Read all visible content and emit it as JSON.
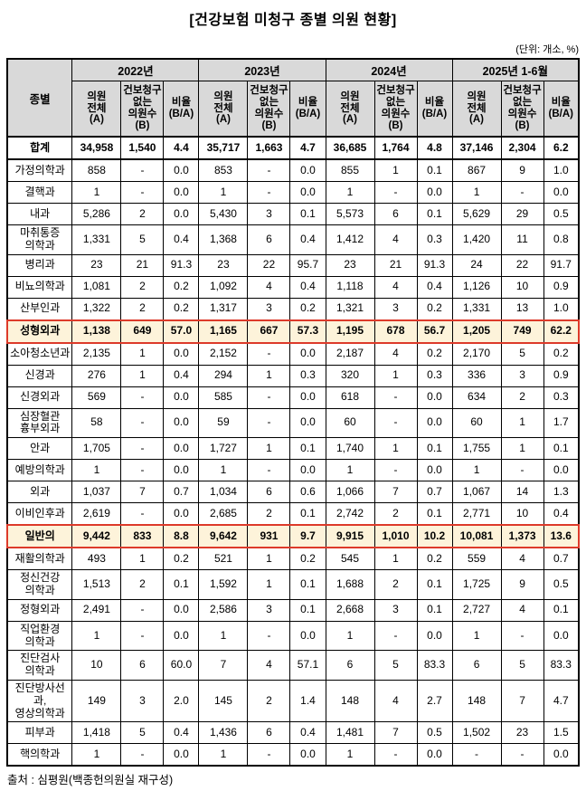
{
  "title": "[건강보험 미청구 종별 의원 현황]",
  "unit_note": "(단위: 개소, %)",
  "source_note": "출처 : 심평원(백종헌의원실 재구성)",
  "colors": {
    "header_bg": "#d9d9d9",
    "highlight_bg": "#fdf3da",
    "highlight_border": "#dd3a2a",
    "border": "#000000"
  },
  "table": {
    "corner_header": "종별",
    "year_groups": [
      "2022년",
      "2023년",
      "2024년",
      "2025년 1-6월"
    ],
    "sub_headers": [
      "의원\n전체\n(A)",
      "건보청구\n없는\n의원수\n(B)",
      "비율\n(B/A)"
    ],
    "rows": [
      {
        "name": "합계",
        "style": "total",
        "values": [
          "34,958",
          "1,540",
          "4.4",
          "35,717",
          "1,663",
          "4.7",
          "36,685",
          "1,764",
          "4.8",
          "37,146",
          "2,304",
          "6.2"
        ]
      },
      {
        "name": "가정의학과",
        "style": "normal",
        "values": [
          "858",
          "-",
          "0.0",
          "853",
          "-",
          "0.0",
          "855",
          "1",
          "0.1",
          "867",
          "9",
          "1.0"
        ]
      },
      {
        "name": "결핵과",
        "style": "normal",
        "values": [
          "1",
          "-",
          "0.0",
          "1",
          "-",
          "0.0",
          "1",
          "-",
          "0.0",
          "1",
          "-",
          "0.0"
        ]
      },
      {
        "name": "내과",
        "style": "normal",
        "values": [
          "5,286",
          "2",
          "0.0",
          "5,430",
          "3",
          "0.1",
          "5,573",
          "6",
          "0.1",
          "5,629",
          "29",
          "0.5"
        ]
      },
      {
        "name": "마취통증\n의학과",
        "style": "normal",
        "values": [
          "1,331",
          "5",
          "0.4",
          "1,368",
          "6",
          "0.4",
          "1,412",
          "4",
          "0.3",
          "1,420",
          "11",
          "0.8"
        ]
      },
      {
        "name": "병리과",
        "style": "normal",
        "values": [
          "23",
          "21",
          "91.3",
          "23",
          "22",
          "95.7",
          "23",
          "21",
          "91.3",
          "24",
          "22",
          "91.7"
        ]
      },
      {
        "name": "비뇨의학과",
        "style": "normal",
        "values": [
          "1,081",
          "2",
          "0.2",
          "1,092",
          "4",
          "0.4",
          "1,118",
          "4",
          "0.4",
          "1,126",
          "10",
          "0.9"
        ]
      },
      {
        "name": "산부인과",
        "style": "normal",
        "values": [
          "1,322",
          "2",
          "0.2",
          "1,317",
          "3",
          "0.2",
          "1,321",
          "3",
          "0.2",
          "1,331",
          "13",
          "1.0"
        ]
      },
      {
        "name": "성형외과",
        "style": "highlight",
        "values": [
          "1,138",
          "649",
          "57.0",
          "1,165",
          "667",
          "57.3",
          "1,195",
          "678",
          "56.7",
          "1,205",
          "749",
          "62.2"
        ]
      },
      {
        "name": "소아청소년과",
        "style": "normal",
        "values": [
          "2,135",
          "1",
          "0.0",
          "2,152",
          "-",
          "0.0",
          "2,187",
          "4",
          "0.2",
          "2,170",
          "5",
          "0.2"
        ]
      },
      {
        "name": "신경과",
        "style": "normal",
        "values": [
          "276",
          "1",
          "0.4",
          "294",
          "1",
          "0.3",
          "320",
          "1",
          "0.3",
          "336",
          "3",
          "0.9"
        ]
      },
      {
        "name": "신경외과",
        "style": "normal",
        "values": [
          "569",
          "-",
          "0.0",
          "585",
          "-",
          "0.0",
          "618",
          "-",
          "0.0",
          "634",
          "2",
          "0.3"
        ]
      },
      {
        "name": "심장혈관\n흉부외과",
        "style": "normal",
        "values": [
          "58",
          "-",
          "0.0",
          "59",
          "-",
          "0.0",
          "60",
          "-",
          "0.0",
          "60",
          "1",
          "1.7"
        ]
      },
      {
        "name": "안과",
        "style": "normal",
        "values": [
          "1,705",
          "-",
          "0.0",
          "1,727",
          "1",
          "0.1",
          "1,740",
          "1",
          "0.1",
          "1,755",
          "1",
          "0.1"
        ]
      },
      {
        "name": "예방의학과",
        "style": "normal",
        "values": [
          "1",
          "-",
          "0.0",
          "1",
          "-",
          "0.0",
          "1",
          "-",
          "0.0",
          "1",
          "-",
          "0.0"
        ]
      },
      {
        "name": "외과",
        "style": "normal",
        "values": [
          "1,037",
          "7",
          "0.7",
          "1,034",
          "6",
          "0.6",
          "1,066",
          "7",
          "0.7",
          "1,067",
          "14",
          "1.3"
        ]
      },
      {
        "name": "이비인후과",
        "style": "normal",
        "values": [
          "2,619",
          "-",
          "0.0",
          "2,685",
          "2",
          "0.1",
          "2,742",
          "2",
          "0.1",
          "2,771",
          "10",
          "0.4"
        ]
      },
      {
        "name": "일반의",
        "style": "highlight",
        "values": [
          "9,442",
          "833",
          "8.8",
          "9,642",
          "931",
          "9.7",
          "9,915",
          "1,010",
          "10.2",
          "10,081",
          "1,373",
          "13.6"
        ]
      },
      {
        "name": "재활의학과",
        "style": "normal",
        "values": [
          "493",
          "1",
          "0.2",
          "521",
          "1",
          "0.2",
          "545",
          "1",
          "0.2",
          "559",
          "4",
          "0.7"
        ]
      },
      {
        "name": "정신건강\n의학과",
        "style": "normal",
        "values": [
          "1,513",
          "2",
          "0.1",
          "1,592",
          "1",
          "0.1",
          "1,688",
          "2",
          "0.1",
          "1,725",
          "9",
          "0.5"
        ]
      },
      {
        "name": "정형외과",
        "style": "normal",
        "values": [
          "2,491",
          "-",
          "0.0",
          "2,586",
          "3",
          "0.1",
          "2,668",
          "3",
          "0.1",
          "2,727",
          "4",
          "0.1"
        ]
      },
      {
        "name": "직업환경\n의학과",
        "style": "normal",
        "values": [
          "1",
          "-",
          "0.0",
          "1",
          "-",
          "0.0",
          "1",
          "-",
          "0.0",
          "1",
          "-",
          "0.0"
        ]
      },
      {
        "name": "진단검사\n의학과",
        "style": "normal",
        "values": [
          "10",
          "6",
          "60.0",
          "7",
          "4",
          "57.1",
          "6",
          "5",
          "83.3",
          "6",
          "5",
          "83.3"
        ]
      },
      {
        "name": "진단방사선과,\n영상의학과",
        "style": "normal",
        "values": [
          "149",
          "3",
          "2.0",
          "145",
          "2",
          "1.4",
          "148",
          "4",
          "2.7",
          "148",
          "7",
          "4.7"
        ]
      },
      {
        "name": "피부과",
        "style": "normal",
        "values": [
          "1,418",
          "5",
          "0.4",
          "1,436",
          "6",
          "0.4",
          "1,481",
          "7",
          "0.5",
          "1,502",
          "23",
          "1.5"
        ]
      },
      {
        "name": "핵의학과",
        "style": "normal",
        "values": [
          "1",
          "-",
          "0.0",
          "1",
          "-",
          "0.0",
          "1",
          "-",
          "0.0",
          "-",
          "-",
          "0.0"
        ]
      }
    ]
  }
}
